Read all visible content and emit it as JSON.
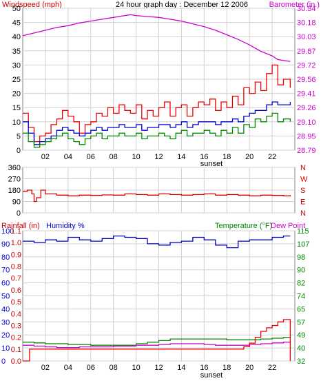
{
  "chart_data": [
    {
      "type": "line",
      "title": "24 hour graph day : December 12 2006",
      "left_axis_label": "Windspeed (mph)",
      "right_axis_label": "Barometer (in.)",
      "x_ticks": [
        "02",
        "04",
        "06",
        "08",
        "10",
        "12",
        "14",
        "16",
        "18",
        "20",
        "22"
      ],
      "x_marker": "sunset",
      "y_left_ticks": [
        "0",
        "5",
        "10",
        "15",
        "20",
        "25",
        "30",
        "35",
        "40",
        "45",
        "50"
      ],
      "y_right_ticks": [
        "28.79",
        "28.95",
        "29.10",
        "29.26",
        "29.41",
        "29.56",
        "29.72",
        "29.87",
        "30.03",
        "30.18",
        "30.34"
      ],
      "ylim_left": [
        0,
        50
      ],
      "ylim_right": [
        28.79,
        30.34
      ],
      "xlim": [
        0,
        24
      ],
      "grid": true,
      "series": [
        {
          "color": "#cc00cc",
          "axis": "right",
          "x": [
            0,
            1,
            2,
            3,
            4,
            5,
            6,
            7,
            8,
            9,
            9.5,
            10,
            11,
            12,
            13,
            14,
            15,
            16,
            17,
            18,
            19,
            20,
            21,
            22,
            22.5,
            23,
            23.6
          ],
          "values": [
            30.04,
            30.07,
            30.1,
            30.13,
            30.15,
            30.18,
            30.2,
            30.22,
            30.24,
            30.26,
            30.27,
            30.26,
            30.25,
            30.24,
            30.22,
            30.2,
            30.17,
            30.14,
            30.1,
            30.05,
            30.0,
            29.94,
            29.87,
            29.82,
            29.78,
            29.77,
            29.76
          ]
        },
        {
          "color": "#ee0000",
          "axis": "left",
          "x": [
            0,
            0.5,
            1,
            1.5,
            2,
            2.5,
            3,
            3.5,
            4,
            4.5,
            5,
            5.5,
            6,
            6.5,
            7,
            7.5,
            8,
            8.5,
            9,
            9.5,
            10,
            10.5,
            11,
            11.5,
            12,
            12.5,
            13,
            13.5,
            14,
            14.5,
            15,
            15.5,
            16,
            16.5,
            17,
            17.5,
            18,
            18.5,
            19,
            19.5,
            20,
            20.5,
            21,
            21.5,
            22,
            22.5,
            23,
            23.6
          ],
          "values": [
            13,
            8,
            3,
            5,
            6,
            9,
            11,
            14,
            12,
            10,
            6,
            9,
            10,
            13,
            12,
            15,
            13,
            16,
            14,
            13,
            16,
            11,
            14,
            12,
            15,
            17,
            12,
            15,
            16,
            12,
            15,
            17,
            16,
            18,
            14,
            17,
            15,
            19,
            16,
            22,
            20,
            24,
            21,
            27,
            30,
            23,
            25,
            22
          ]
        },
        {
          "color": "#0000cc",
          "axis": "left",
          "x": [
            0,
            0.5,
            1,
            1.5,
            2,
            2.5,
            3,
            3.5,
            4,
            4.5,
            5,
            5.5,
            6,
            6.5,
            7,
            7.5,
            8,
            8.5,
            9,
            9.5,
            10,
            10.5,
            11,
            11.5,
            12,
            12.5,
            13,
            13.5,
            14,
            14.5,
            15,
            15.5,
            16,
            16.5,
            17,
            17.5,
            18,
            18.5,
            19,
            19.5,
            20,
            20.5,
            21,
            21.5,
            22,
            22.5,
            23,
            23.6
          ],
          "values": [
            10,
            6,
            2,
            3,
            4,
            5,
            7,
            8,
            7,
            6,
            5,
            6,
            7,
            8,
            7,
            8,
            8,
            9,
            8,
            8,
            9,
            7,
            8,
            8,
            9,
            9,
            8,
            9,
            10,
            8,
            9,
            10,
            10,
            10,
            9,
            10,
            10,
            11,
            10,
            12,
            13,
            14,
            14,
            16,
            17,
            16,
            16,
            17
          ]
        },
        {
          "color": "#008800",
          "axis": "left",
          "x": [
            0,
            0.5,
            1,
            1.5,
            2,
            2.5,
            3,
            3.5,
            4,
            4.5,
            5,
            5.5,
            6,
            6.5,
            7,
            7.5,
            8,
            8.5,
            9,
            9.5,
            10,
            10.5,
            11,
            11.5,
            12,
            12.5,
            13,
            13.5,
            14,
            14.5,
            15,
            15.5,
            16,
            16.5,
            17,
            17.5,
            18,
            18.5,
            19,
            19.5,
            20,
            20.5,
            21,
            21.5,
            22,
            22.5,
            23,
            23.6
          ],
          "values": [
            6,
            3,
            1,
            2,
            3,
            4,
            5,
            6,
            4,
            3,
            2,
            4,
            5,
            6,
            4,
            5,
            5,
            6,
            5,
            5,
            6,
            4,
            5,
            5,
            6,
            5,
            4,
            6,
            7,
            5,
            6,
            6,
            7,
            6,
            5,
            7,
            6,
            8,
            6,
            9,
            8,
            11,
            10,
            12,
            13,
            10,
            11,
            10
          ]
        }
      ]
    },
    {
      "type": "line",
      "y_left_ticks": [
        "0",
        "90",
        "180",
        "270",
        "360"
      ],
      "y_right_ticks": [
        "N",
        "E",
        "S",
        "W",
        "N"
      ],
      "ylim": [
        0,
        360
      ],
      "xlim": [
        0,
        24
      ],
      "grid": true,
      "series": [
        {
          "color": "#dd0000",
          "x": [
            0,
            0.4,
            0.8,
            1.0,
            1.2,
            1.6,
            2,
            3,
            4,
            5,
            6,
            7,
            8,
            9,
            10,
            11,
            12,
            13,
            14,
            15,
            16,
            17,
            18,
            19,
            20,
            21,
            22,
            23,
            23.6
          ],
          "values": [
            170,
            180,
            150,
            90,
            120,
            180,
            150,
            140,
            135,
            140,
            138,
            142,
            140,
            150,
            145,
            140,
            150,
            145,
            140,
            145,
            150,
            140,
            145,
            140,
            135,
            140,
            138,
            135,
            140
          ]
        }
      ]
    },
    {
      "type": "line",
      "left_axis_label_1": "Rainfall (in)",
      "left_axis_label_2": "Humidity %",
      "right_axis_label_1": "Temperature (°F)",
      "right_axis_label_2": "Dew Point",
      "x_ticks": [
        "02",
        "04",
        "06",
        "08",
        "10",
        "12",
        "14",
        "16",
        "18",
        "20",
        "22"
      ],
      "x_marker": "sunset",
      "y_left_outer_ticks": [
        "0",
        "10",
        "20",
        "30",
        "40",
        "50",
        "60",
        "70",
        "80",
        "90",
        "100"
      ],
      "y_left_inner_ticks": [
        "0.0",
        "0.1",
        "0.2",
        "0.3",
        "0.4",
        "0.5",
        "0.6",
        "0.7",
        "0.8",
        "0.9",
        "1.0",
        "1.1"
      ],
      "y_right_ticks": [
        "32",
        "40",
        "49",
        "57",
        "65",
        "74",
        "82",
        "90",
        "98",
        "107",
        "115"
      ],
      "ylim_humidity": [
        0,
        100
      ],
      "ylim_rain": [
        0,
        1.1
      ],
      "ylim_temp": [
        32,
        115
      ],
      "xlim": [
        0,
        24
      ],
      "grid": true,
      "series": [
        {
          "color": "#0000cc",
          "axis": "humidity",
          "x": [
            0,
            1,
            2,
            3,
            4,
            5,
            6,
            7,
            8,
            9,
            10,
            11,
            12,
            13,
            14,
            15,
            16,
            17,
            18,
            19,
            20,
            21,
            22,
            23,
            23.6
          ],
          "values": [
            92,
            91,
            93,
            92,
            95,
            93,
            92,
            94,
            96,
            95,
            94,
            90,
            89,
            91,
            92,
            95,
            93,
            89,
            87,
            92,
            93,
            93,
            95,
            96,
            96
          ]
        },
        {
          "color": "#008800",
          "axis": "temp",
          "x": [
            0,
            1,
            2,
            3,
            4,
            5,
            6,
            7,
            8,
            9,
            10,
            11,
            12,
            13,
            14,
            15,
            16,
            17,
            18,
            19,
            20,
            21,
            22,
            23,
            23.6
          ],
          "values": [
            44,
            43.5,
            43,
            43,
            42.5,
            42.5,
            42,
            42,
            42,
            42,
            43,
            44,
            45,
            46,
            46,
            46,
            46,
            46,
            45.5,
            45.5,
            45.5,
            46,
            46.5,
            47,
            47
          ]
        },
        {
          "color": "#cc00cc",
          "axis": "temp",
          "x": [
            0,
            1,
            2,
            3,
            4,
            5,
            6,
            7,
            8,
            9,
            10,
            11,
            12,
            13,
            14,
            15,
            16,
            17,
            18,
            19,
            20,
            21,
            22,
            23,
            23.6
          ],
          "values": [
            42,
            41.5,
            41,
            40.5,
            40.5,
            41,
            41,
            41,
            41.5,
            41.5,
            42,
            42,
            42.5,
            43,
            43,
            43,
            42.5,
            42,
            42,
            42,
            42.5,
            43,
            43.5,
            44,
            44.5
          ]
        },
        {
          "color": "#ee0000",
          "axis": "rain",
          "x": [
            0,
            0.5,
            0.6,
            1,
            19,
            19.5,
            20,
            20.5,
            21,
            21.5,
            22,
            22.5,
            23,
            23.5,
            23.6,
            23.6
          ],
          "values": [
            0,
            0,
            0.1,
            0.1,
            0.1,
            0.12,
            0.15,
            0.2,
            0.25,
            0.28,
            0.3,
            0.33,
            0.35,
            0.35,
            0.35,
            0
          ]
        }
      ]
    }
  ]
}
